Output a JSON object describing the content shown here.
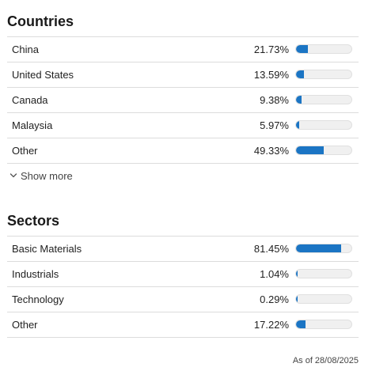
{
  "countries": {
    "title": "Countries",
    "rows": [
      {
        "label": "China",
        "value": "21.73%",
        "pct": 21.73
      },
      {
        "label": "United States",
        "value": "13.59%",
        "pct": 13.59
      },
      {
        "label": "Canada",
        "value": "9.38%",
        "pct": 9.38
      },
      {
        "label": "Malaysia",
        "value": "5.97%",
        "pct": 5.97
      },
      {
        "label": "Other",
        "value": "49.33%",
        "pct": 49.33
      }
    ],
    "show_more": "Show more"
  },
  "sectors": {
    "title": "Sectors",
    "rows": [
      {
        "label": "Basic Materials",
        "value": "81.45%",
        "pct": 81.45
      },
      {
        "label": "Industrials",
        "value": "1.04%",
        "pct": 1.04
      },
      {
        "label": "Technology",
        "value": "0.29%",
        "pct": 0.29
      },
      {
        "label": "Other",
        "value": "17.22%",
        "pct": 17.22
      }
    ]
  },
  "as_of": "As of 28/08/2025",
  "colors": {
    "bar": "#1b75c4",
    "track": "#f0f0f0",
    "divider": "#dcdcdc"
  },
  "icons": {
    "show_more": "chevron-down-icon"
  }
}
